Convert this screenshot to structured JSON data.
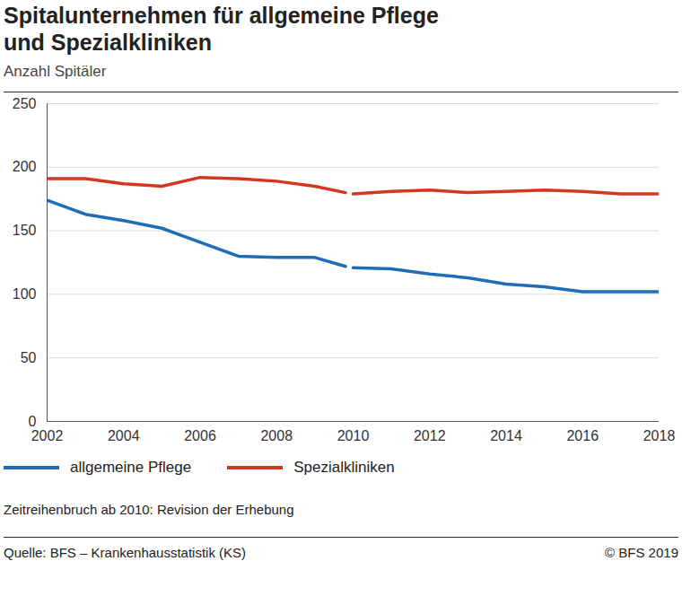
{
  "chart_data": {
    "type": "line",
    "title": "Spitalunternehmen für allgemeine Pflege und Spezialkliniken",
    "subtitle": "Anzahl Spitäler",
    "note": "Zeitreihenbruch ab 2010: Revision der Erhebung",
    "source": "Quelle: BFS – Krankenhausstatistik (KS)",
    "copyright": "© BFS 2019",
    "x": [
      2002,
      2003,
      2004,
      2005,
      2006,
      2007,
      2008,
      2009,
      2009.8,
      2009.9,
      2010,
      2011,
      2012,
      2013,
      2014,
      2015,
      2016,
      2017,
      2018
    ],
    "series": [
      {
        "name": "allgemeine Pflege",
        "color": "#1f6db4",
        "values": [
          174,
          163,
          158,
          152,
          141,
          130,
          129,
          129,
          122,
          null,
          121,
          120,
          116,
          113,
          108,
          106,
          102,
          102,
          102
        ]
      },
      {
        "name": "Spezialkliniken",
        "color": "#d5361f",
        "values": [
          191,
          191,
          187,
          185,
          192,
          191,
          189,
          185,
          180,
          null,
          179,
          181,
          182,
          180,
          181,
          182,
          181,
          179,
          179
        ]
      }
    ],
    "xlim": [
      2002,
      2018
    ],
    "xticks": [
      2002,
      2004,
      2006,
      2008,
      2010,
      2012,
      2014,
      2016,
      2018
    ],
    "ylim": [
      0,
      250
    ],
    "yticks": [
      0,
      50,
      100,
      150,
      200,
      250
    ],
    "grid": true,
    "legend": "bottom-left"
  }
}
